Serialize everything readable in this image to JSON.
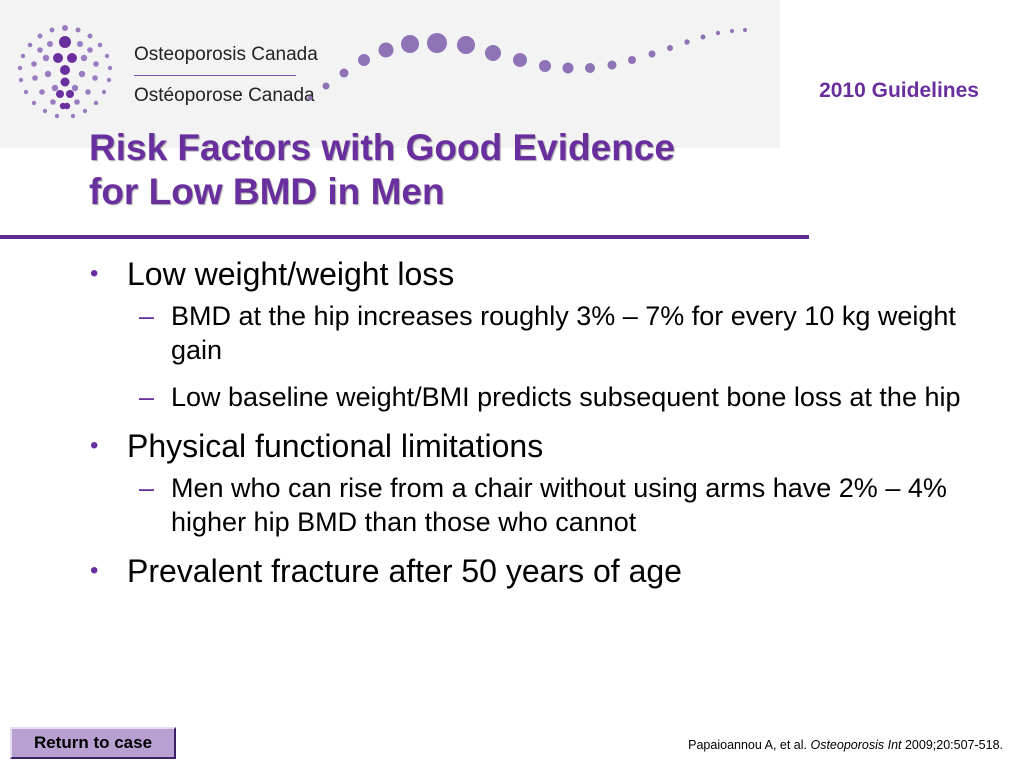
{
  "header": {
    "org_name_en": "Osteoporosis Canada",
    "org_name_fr": "Ostéoporose Canada",
    "guidelines_label": "2010 Guidelines",
    "logo_icon": "osteoporosis-canada-dot-figure-logo",
    "brand_color": "#6a2f9e"
  },
  "slide": {
    "title_line1": "Risk Factors with Good Evidence",
    "title_line2": "for Low BMD in Men",
    "bullet_mark": "•",
    "sub_mark": "–",
    "bullets": [
      {
        "text": "Low weight/weight loss",
        "subs": [
          "BMD at the hip increases roughly 3% – 7% for every 10 kg weight gain",
          "Low baseline weight/BMI predicts subsequent bone loss at the hip"
        ]
      },
      {
        "text": "Physical functional limitations",
        "subs": [
          "Men who can rise from a chair without using arms have 2% – 4% higher hip BMD than those who cannot"
        ]
      },
      {
        "text": "Prevalent fracture after 50 years of age",
        "subs": []
      }
    ]
  },
  "footer": {
    "return_button": "Return to case",
    "citation_authors": "Papaioannou A, et al.",
    "citation_journal": "Osteoporosis Int",
    "citation_details": "2009;20:507-518."
  }
}
